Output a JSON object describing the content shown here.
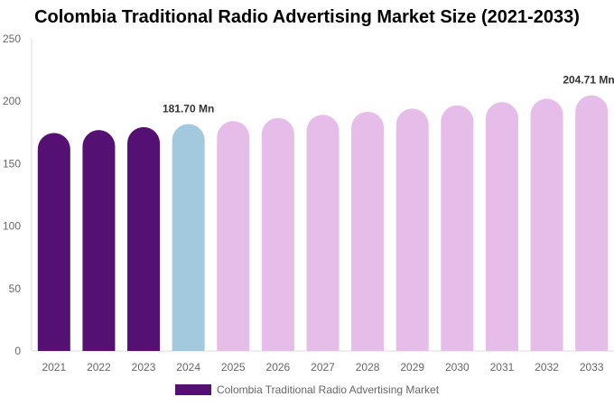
{
  "chart_data": {
    "type": "bar",
    "title": "Colombia Traditional Radio Advertising Market Size (2021-2033)",
    "categories": [
      "2021",
      "2022",
      "2023",
      "2024",
      "2025",
      "2026",
      "2027",
      "2028",
      "2029",
      "2030",
      "2031",
      "2032",
      "2033"
    ],
    "series": [
      {
        "name": "Colombia Traditional Radio Advertising Market",
        "values": [
          174.6,
          176.9,
          179.3,
          181.7,
          184.1,
          186.6,
          189.1,
          191.6,
          194.1,
          196.7,
          199.3,
          202.0,
          204.71
        ]
      }
    ],
    "data_labels": [
      {
        "category": "2024",
        "text": "181.70 Mn"
      },
      {
        "category": "2033",
        "text": "204.71 Mn"
      }
    ],
    "ylim": [
      0,
      250
    ],
    "yticks": [
      0,
      50,
      100,
      150,
      200,
      250
    ],
    "grid": false,
    "legend_placement": "bottom",
    "colors": {
      "historical": "#541173",
      "base_year": "#a3c9df",
      "forecast": "#e6bde9"
    }
  }
}
